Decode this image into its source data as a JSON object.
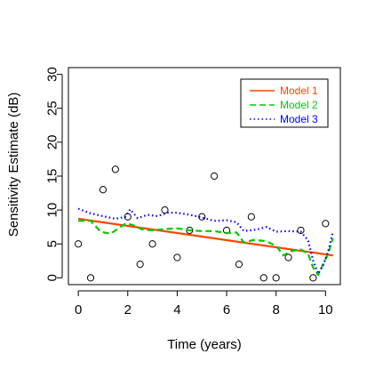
{
  "chart_data": {
    "type": "scatter",
    "title": "",
    "xlabel": "Time (years)",
    "ylabel": "Sensitivity Estimate (dB)",
    "xlim": [
      -0.4,
      10.6
    ],
    "ylim": [
      -1,
      31
    ],
    "xticks": [
      0,
      2,
      4,
      6,
      8,
      10
    ],
    "yticks": [
      0,
      5,
      10,
      15,
      20,
      25,
      30
    ],
    "grid": false,
    "legend_position": "top-right",
    "points": {
      "x": [
        0,
        0.5,
        1,
        1.5,
        2,
        2.5,
        3,
        3.5,
        4,
        4.5,
        5,
        5.5,
        6,
        6.5,
        7,
        7.5,
        8,
        8.5,
        9,
        9.5,
        10
      ],
      "y": [
        5,
        0,
        13,
        16,
        9,
        2,
        5,
        10,
        3,
        7,
        9,
        15,
        7,
        2,
        9,
        0,
        0,
        3,
        7,
        0,
        8
      ]
    },
    "series": [
      {
        "name": "Model 1",
        "color": "#ff4500",
        "style": "solid",
        "x": [
          0,
          10.3
        ],
        "y": [
          8.7,
          3.3
        ]
      },
      {
        "name": "Model 2",
        "color": "#00cc00",
        "style": "dashed",
        "x": [
          0,
          0.5,
          0.9,
          1.3,
          1.6,
          1.9,
          2.2,
          2.6,
          3.0,
          3.5,
          4.0,
          4.5,
          5.0,
          5.5,
          6.0,
          6.4,
          6.7,
          7.1,
          7.6,
          8.0,
          8.3,
          8.6,
          9.0,
          9.3,
          9.5,
          9.7,
          9.9,
          10.1,
          10.3
        ],
        "y": [
          8.4,
          8.4,
          6.8,
          6.5,
          7.2,
          8.0,
          7.8,
          7.1,
          7.0,
          7.2,
          7.3,
          7.0,
          6.9,
          6.9,
          6.6,
          6.7,
          5.2,
          5.6,
          5.4,
          4.7,
          3.3,
          3.9,
          4.2,
          3.5,
          1.5,
          0.4,
          2.0,
          3.5,
          5.8
        ]
      },
      {
        "name": "Model 3",
        "color": "#0000ff",
        "style": "dotted",
        "x": [
          0,
          0.5,
          1.0,
          1.5,
          1.9,
          2.1,
          2.4,
          2.8,
          3.2,
          3.6,
          4.0,
          4.5,
          5.0,
          5.5,
          6.0,
          6.4,
          6.7,
          7.2,
          7.6,
          8.0,
          8.5,
          9.0,
          9.3,
          9.5,
          9.7,
          9.9,
          10.1,
          10.3
        ],
        "y": [
          10.2,
          9.5,
          9.1,
          8.7,
          9.0,
          10.1,
          8.8,
          9.3,
          9.1,
          9.6,
          9.6,
          9.3,
          8.9,
          8.4,
          8.5,
          8.2,
          6.9,
          7.1,
          7.5,
          6.8,
          6.9,
          6.8,
          5.5,
          2.5,
          0.6,
          1.8,
          3.8,
          6.8
        ]
      }
    ]
  }
}
